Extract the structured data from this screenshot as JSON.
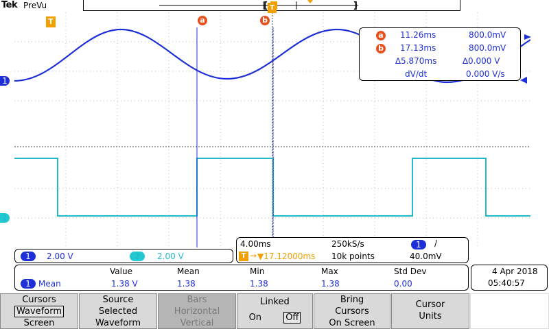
{
  "header": {
    "brand": "Tek",
    "mode": "PreVu"
  },
  "markers": {
    "trigger": "T",
    "cursor_a": "a",
    "cursor_b": "b",
    "ch1": "1",
    "ch2": "2"
  },
  "cursor_readout": {
    "a_time": "11.26ms",
    "a_value": "800.0mV",
    "b_time": "17.13ms",
    "b_value": "800.0mV",
    "delta_time": "∆5.870ms",
    "delta_value": "∆0.000 V",
    "dvdt_label": "dV/dt",
    "dvdt_value": "0.000 V/s"
  },
  "channels": {
    "ch1_scale": "2.00 V",
    "ch2_scale": "2.00 V"
  },
  "acquisition": {
    "timebase": "4.00ms",
    "sample_rate": "250kS/s",
    "trigger_source": "1",
    "trigger_slope": "/",
    "trigger_position": "▼17.12000ms",
    "record_length": "10k points",
    "trigger_level": "40.0mV"
  },
  "measurements": {
    "headers": [
      "Value",
      "Mean",
      "Min",
      "Max",
      "Std Dev"
    ],
    "row": {
      "channel": "1",
      "name": "Mean",
      "value": "1.38 V",
      "mean": "1.38",
      "min": "1.38",
      "max": "1.38",
      "stddev": "0.00"
    }
  },
  "datetime": {
    "date": "4 Apr  2018",
    "time": "05:40:57"
  },
  "menu": {
    "cursors": {
      "title": "Cursors",
      "opt1": "Waveform",
      "opt2": "Screen"
    },
    "source": {
      "line1": "Source",
      "line2": "Selected",
      "line3": "Waveform"
    },
    "bars": {
      "line1": "Bars",
      "line2": "Horizontal",
      "line3": "Vertical"
    },
    "linked": {
      "title": "Linked",
      "on": "On",
      "off": "Off"
    },
    "bring": {
      "line1": "Bring",
      "line2": "Cursors",
      "line3": "On Screen"
    },
    "units": {
      "line1": "Cursor",
      "line2": "Units"
    }
  },
  "colors": {
    "ch1": "#1d2fd6",
    "ch2": "#22b8c8",
    "trigger": "#f0a000",
    "cursor_marker": "#e8501e"
  }
}
